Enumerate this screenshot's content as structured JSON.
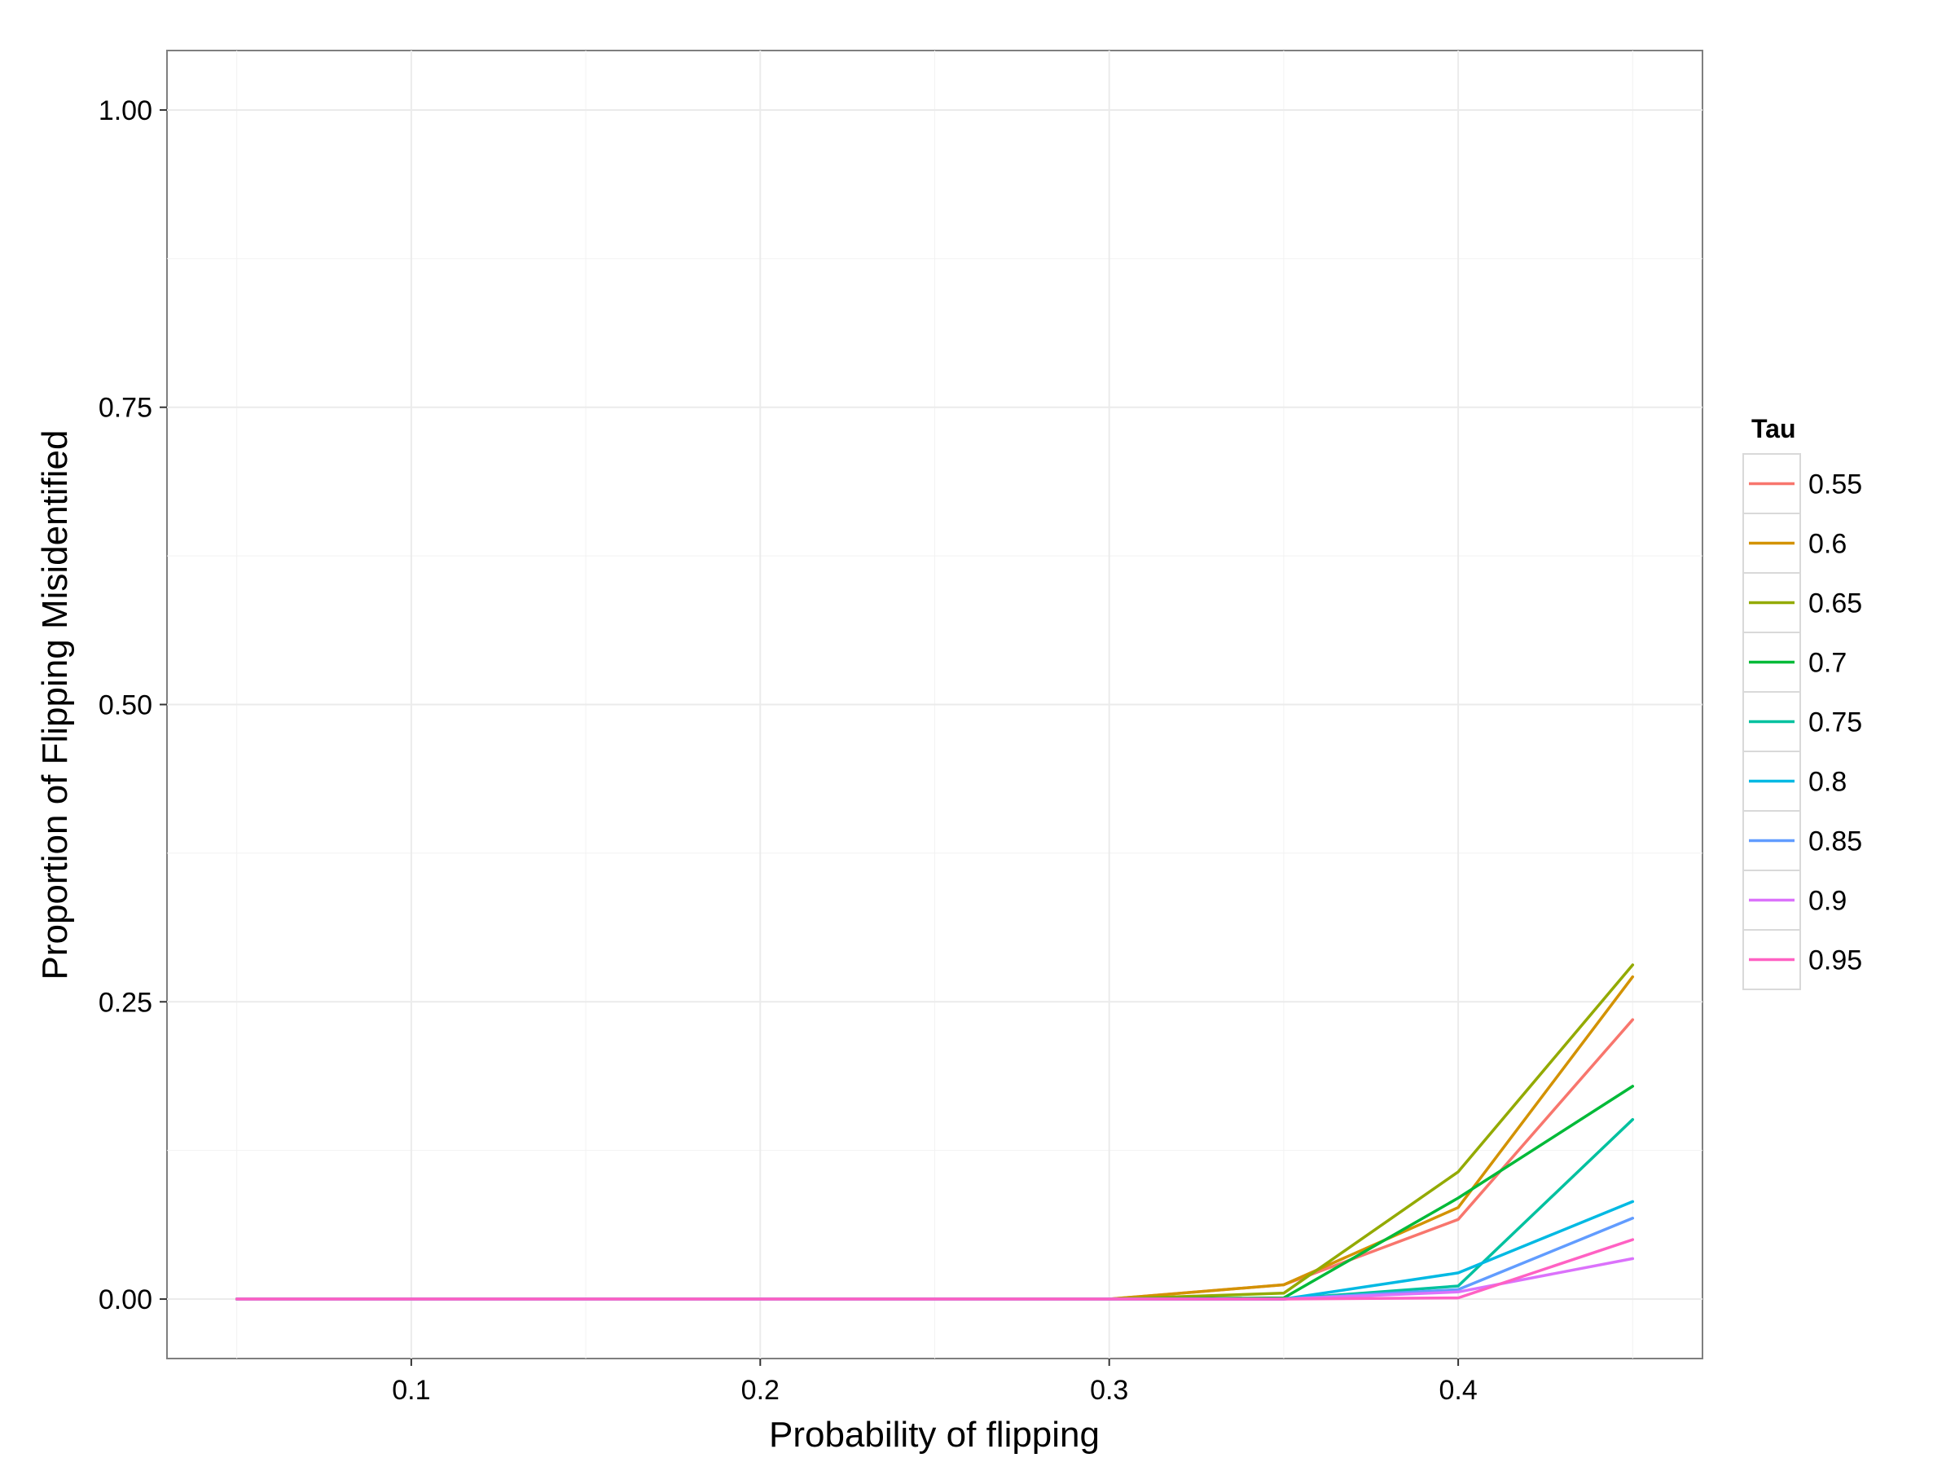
{
  "chart_data": {
    "type": "line",
    "title": "",
    "xlabel": "Probability of flipping",
    "ylabel": "Proportion of Flipping Misidentified",
    "xlim": [
      0.03,
      0.47
    ],
    "ylim": [
      -0.05,
      1.05
    ],
    "x_ticks": [
      {
        "value": 0.1,
        "label": "0.1"
      },
      {
        "value": 0.2,
        "label": "0.2"
      },
      {
        "value": 0.3,
        "label": "0.3"
      },
      {
        "value": 0.4,
        "label": "0.4"
      }
    ],
    "y_ticks": [
      {
        "value": 0.0,
        "label": "0.00"
      },
      {
        "value": 0.25,
        "label": "0.25"
      },
      {
        "value": 0.5,
        "label": "0.50"
      },
      {
        "value": 0.75,
        "label": "0.75"
      },
      {
        "value": 1.0,
        "label": "1.00"
      }
    ],
    "grid": true,
    "legend_title": "Tau",
    "legend_position": "right",
    "x": [
      0.05,
      0.1,
      0.15,
      0.2,
      0.25,
      0.3,
      0.35,
      0.4,
      0.45
    ],
    "series": [
      {
        "name": "0.55",
        "color": "#F8766D",
        "values": [
          0,
          0,
          0,
          0,
          0,
          0,
          0.012,
          0.067,
          0.235
        ]
      },
      {
        "name": "0.6",
        "color": "#D39200",
        "values": [
          0,
          0,
          0,
          0,
          0,
          0,
          0.012,
          0.077,
          0.271
        ]
      },
      {
        "name": "0.65",
        "color": "#93AA00",
        "values": [
          0,
          0,
          0,
          0,
          0,
          0,
          0.005,
          0.107,
          0.281
        ]
      },
      {
        "name": "0.7",
        "color": "#00BA38",
        "values": [
          0,
          0,
          0,
          0,
          0,
          0,
          0.001,
          0.085,
          0.179
        ]
      },
      {
        "name": "0.75",
        "color": "#00C19F",
        "values": [
          0,
          0,
          0,
          0,
          0,
          0,
          0.0,
          0.011,
          0.151
        ]
      },
      {
        "name": "0.8",
        "color": "#00B9E3",
        "values": [
          0,
          0,
          0,
          0,
          0,
          0,
          0.0,
          0.022,
          0.082
        ]
      },
      {
        "name": "0.85",
        "color": "#619CFF",
        "values": [
          0,
          0,
          0,
          0,
          0,
          0,
          0.0,
          0.008,
          0.068
        ]
      },
      {
        "name": "0.9",
        "color": "#DB72FB",
        "values": [
          0,
          0,
          0,
          0,
          0,
          0,
          0.0,
          0.006,
          0.034
        ]
      },
      {
        "name": "0.95",
        "color": "#FF61C3",
        "values": [
          0,
          0,
          0,
          0,
          0,
          0,
          0.0,
          0.001,
          0.05
        ]
      }
    ]
  }
}
